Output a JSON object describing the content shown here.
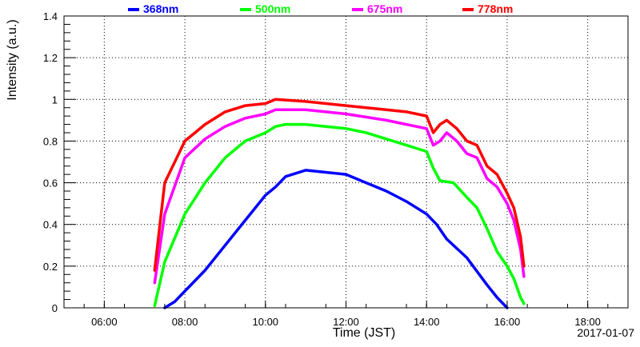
{
  "chart_data": {
    "type": "scatter",
    "xlabel": "Time (JST)",
    "ylabel": "Intensity (a.u.)",
    "date_label": "2017-01-07",
    "x_range": [
      "05:00",
      "19:00"
    ],
    "ylim": [
      0,
      1.4
    ],
    "x_ticks": [
      "06:00",
      "08:00",
      "10:00",
      "12:00",
      "14:00",
      "16:00",
      "18:00"
    ],
    "y_ticks": [
      "0",
      "0.2",
      "0.4",
      "0.6",
      "0.8",
      "1",
      "1.2",
      "1.4"
    ],
    "grid": true,
    "legend_position": "top",
    "series": [
      {
        "name": "368nm",
        "color": "#0000ff",
        "points": [
          [
            "07:30",
            0.0
          ],
          [
            "07:45",
            0.03
          ],
          [
            "08:00",
            0.08
          ],
          [
            "08:30",
            0.18
          ],
          [
            "09:00",
            0.3
          ],
          [
            "09:30",
            0.42
          ],
          [
            "10:00",
            0.54
          ],
          [
            "10:15",
            0.58
          ],
          [
            "10:30",
            0.63
          ],
          [
            "11:00",
            0.66
          ],
          [
            "11:30",
            0.65
          ],
          [
            "12:00",
            0.64
          ],
          [
            "12:30",
            0.6
          ],
          [
            "13:00",
            0.56
          ],
          [
            "13:30",
            0.51
          ],
          [
            "14:00",
            0.45
          ],
          [
            "14:15",
            0.4
          ],
          [
            "14:30",
            0.33
          ],
          [
            "15:00",
            0.24
          ],
          [
            "15:30",
            0.11
          ],
          [
            "15:45",
            0.05
          ],
          [
            "16:00",
            0.0
          ]
        ]
      },
      {
        "name": "500nm",
        "color": "#00ff00",
        "points": [
          [
            "07:15",
            0.01
          ],
          [
            "07:30",
            0.22
          ],
          [
            "08:00",
            0.45
          ],
          [
            "08:30",
            0.6
          ],
          [
            "09:00",
            0.72
          ],
          [
            "09:30",
            0.8
          ],
          [
            "10:00",
            0.84
          ],
          [
            "10:15",
            0.87
          ],
          [
            "10:30",
            0.88
          ],
          [
            "11:00",
            0.88
          ],
          [
            "11:30",
            0.87
          ],
          [
            "12:00",
            0.86
          ],
          [
            "12:30",
            0.84
          ],
          [
            "13:00",
            0.81
          ],
          [
            "13:30",
            0.78
          ],
          [
            "14:00",
            0.75
          ],
          [
            "14:10",
            0.67
          ],
          [
            "14:20",
            0.61
          ],
          [
            "14:40",
            0.6
          ],
          [
            "15:00",
            0.53
          ],
          [
            "15:15",
            0.48
          ],
          [
            "15:30",
            0.38
          ],
          [
            "15:45",
            0.27
          ],
          [
            "16:00",
            0.2
          ],
          [
            "16:10",
            0.14
          ],
          [
            "16:20",
            0.05
          ],
          [
            "16:25",
            0.02
          ]
        ]
      },
      {
        "name": "675nm",
        "color": "#ff00ff",
        "points": [
          [
            "07:15",
            0.12
          ],
          [
            "07:30",
            0.45
          ],
          [
            "08:00",
            0.72
          ],
          [
            "08:30",
            0.81
          ],
          [
            "09:00",
            0.87
          ],
          [
            "09:30",
            0.91
          ],
          [
            "10:00",
            0.93
          ],
          [
            "10:15",
            0.95
          ],
          [
            "11:00",
            0.95
          ],
          [
            "12:00",
            0.93
          ],
          [
            "13:00",
            0.9
          ],
          [
            "13:30",
            0.88
          ],
          [
            "14:00",
            0.86
          ],
          [
            "14:10",
            0.78
          ],
          [
            "14:20",
            0.8
          ],
          [
            "14:30",
            0.84
          ],
          [
            "14:45",
            0.8
          ],
          [
            "15:00",
            0.74
          ],
          [
            "15:15",
            0.72
          ],
          [
            "15:30",
            0.62
          ],
          [
            "15:45",
            0.58
          ],
          [
            "16:00",
            0.5
          ],
          [
            "16:10",
            0.42
          ],
          [
            "16:20",
            0.28
          ],
          [
            "16:25",
            0.15
          ]
        ]
      },
      {
        "name": "778nm",
        "color": "#ff0000",
        "points": [
          [
            "07:15",
            0.18
          ],
          [
            "07:30",
            0.6
          ],
          [
            "08:00",
            0.8
          ],
          [
            "08:30",
            0.88
          ],
          [
            "09:00",
            0.94
          ],
          [
            "09:30",
            0.97
          ],
          [
            "10:00",
            0.98
          ],
          [
            "10:15",
            1.0
          ],
          [
            "11:00",
            0.99
          ],
          [
            "12:00",
            0.97
          ],
          [
            "13:00",
            0.95
          ],
          [
            "13:30",
            0.94
          ],
          [
            "14:00",
            0.92
          ],
          [
            "14:10",
            0.84
          ],
          [
            "14:20",
            0.88
          ],
          [
            "14:30",
            0.9
          ],
          [
            "14:45",
            0.86
          ],
          [
            "15:00",
            0.8
          ],
          [
            "15:15",
            0.78
          ],
          [
            "15:30",
            0.68
          ],
          [
            "15:45",
            0.64
          ],
          [
            "16:00",
            0.55
          ],
          [
            "16:10",
            0.48
          ],
          [
            "16:20",
            0.34
          ],
          [
            "16:25",
            0.2
          ]
        ]
      }
    ]
  }
}
